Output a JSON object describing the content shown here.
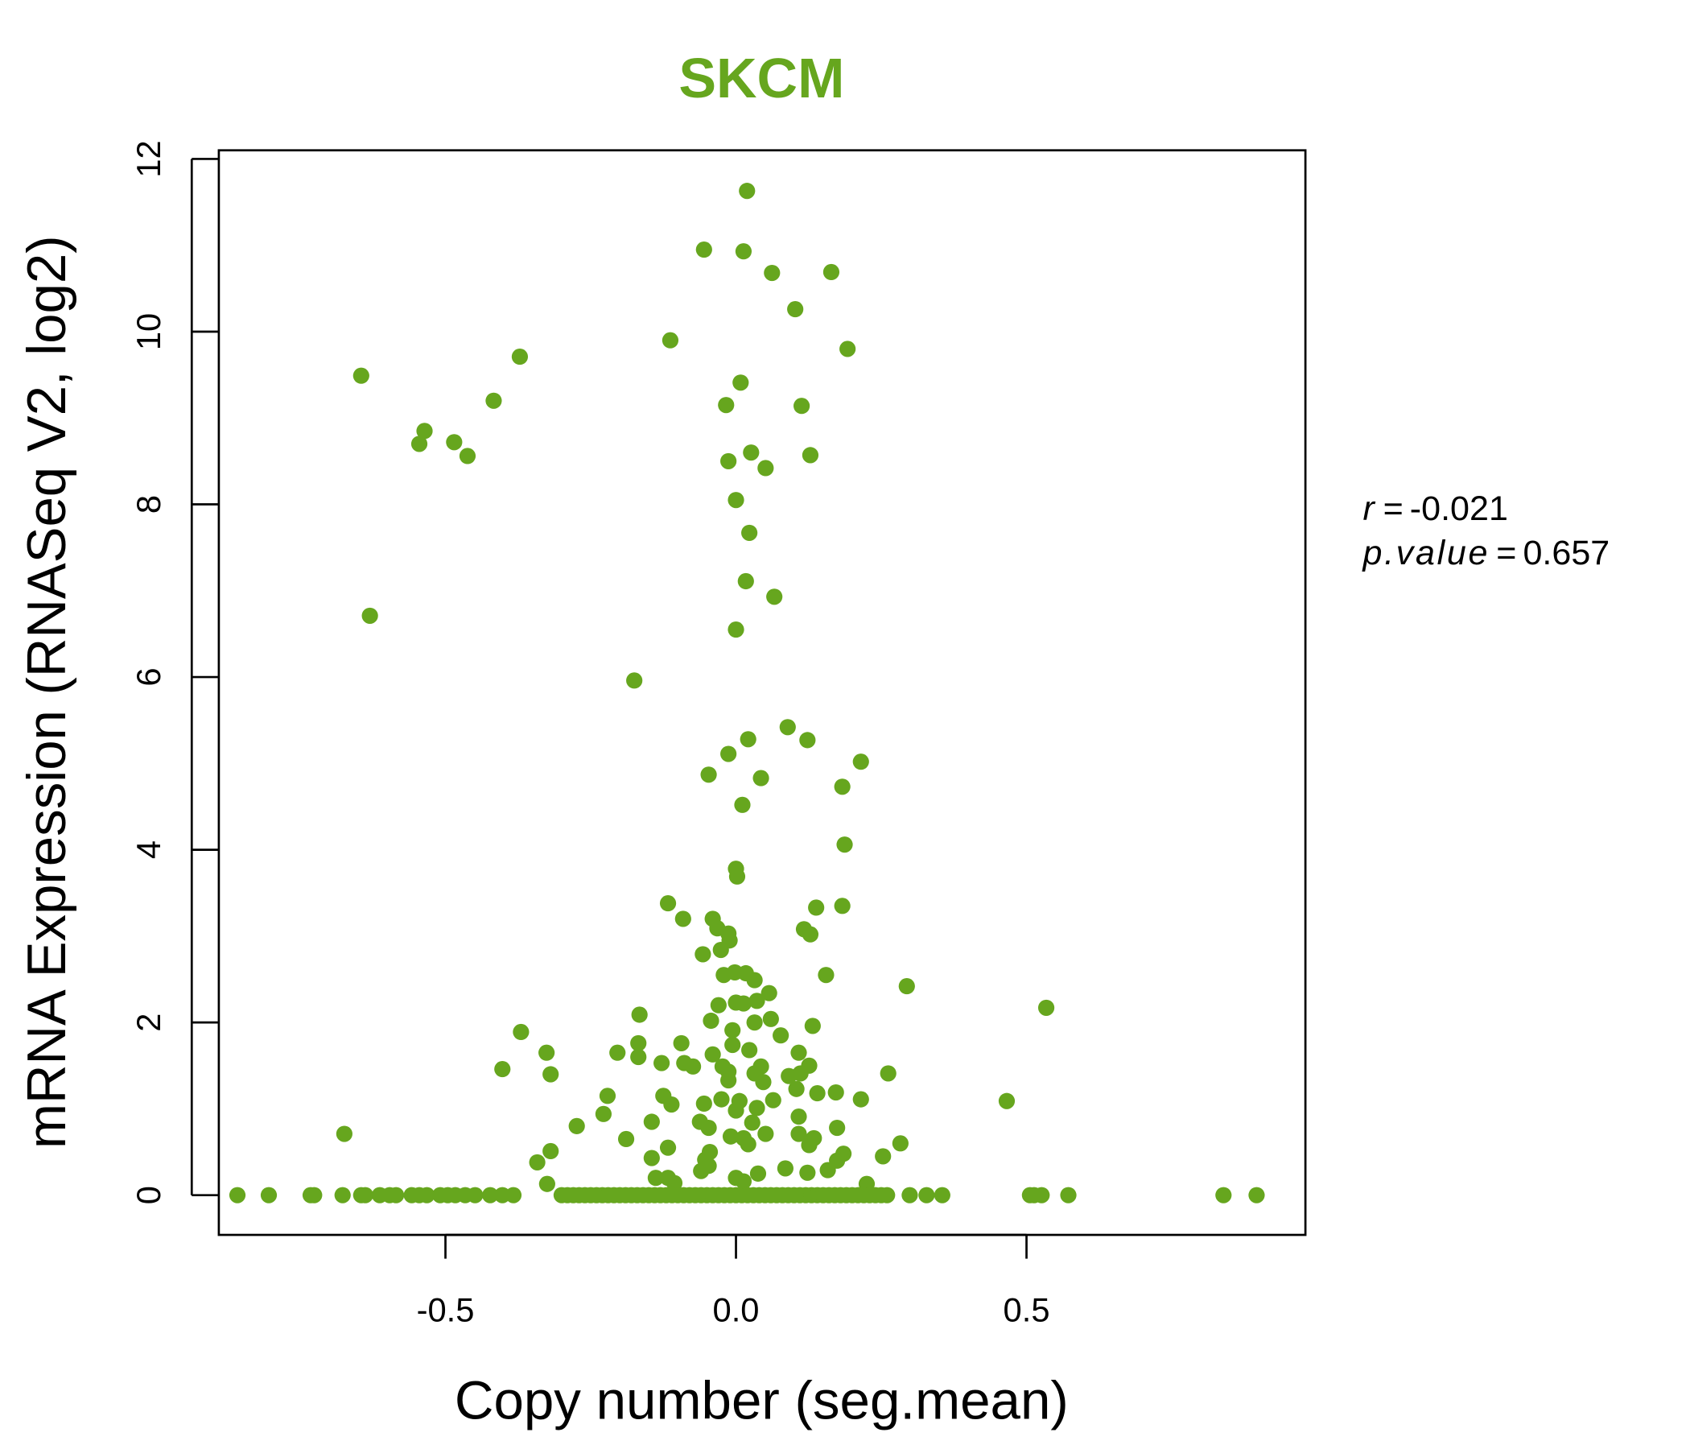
{
  "chart_data": {
    "type": "scatter",
    "title": "SKCM",
    "xlabel": "Copy number (seg.mean)",
    "ylabel": "mRNA Expression (RNASeq V2, log2)",
    "xlim": [
      -0.89,
      0.98
    ],
    "ylim": [
      -0.46,
      12.1
    ],
    "x_ticks": [
      -0.5,
      0.0,
      0.5
    ],
    "x_tick_labels": [
      "-0.5",
      "0.0",
      "0.5"
    ],
    "y_ticks": [
      0,
      2,
      4,
      6,
      8,
      10,
      12
    ],
    "y_tick_labels": [
      "0",
      "2",
      "4",
      "6",
      "8",
      "10",
      "12"
    ],
    "grid": false,
    "colors": {
      "points": "#66A61E",
      "title": "#66A61E"
    },
    "annotations": {
      "r_label": "r",
      "r_value": "-0.021",
      "p_label": "p.value",
      "p_value": "0.657",
      "eq": "="
    },
    "points": [
      [
        0.019,
        11.63
      ],
      [
        -0.055,
        10.95
      ],
      [
        0.013,
        10.93
      ],
      [
        0.062,
        10.68
      ],
      [
        0.164,
        10.69
      ],
      [
        0.102,
        10.26
      ],
      [
        -0.113,
        9.9
      ],
      [
        0.192,
        9.8
      ],
      [
        -0.372,
        9.71
      ],
      [
        -0.645,
        9.49
      ],
      [
        0.008,
        9.41
      ],
      [
        -0.417,
        9.2
      ],
      [
        -0.017,
        9.15
      ],
      [
        0.113,
        9.14
      ],
      [
        -0.536,
        8.85
      ],
      [
        -0.545,
        8.7
      ],
      [
        -0.485,
        8.72
      ],
      [
        -0.462,
        8.56
      ],
      [
        0.026,
        8.6
      ],
      [
        -0.013,
        8.5
      ],
      [
        0.128,
        8.57
      ],
      [
        0.051,
        8.42
      ],
      [
        0.0,
        8.05
      ],
      [
        0.023,
        7.67
      ],
      [
        0.017,
        7.11
      ],
      [
        0.066,
        6.93
      ],
      [
        0.0,
        6.55
      ],
      [
        -0.63,
        6.71
      ],
      [
        -0.175,
        5.96
      ],
      [
        0.089,
        5.42
      ],
      [
        0.021,
        5.28
      ],
      [
        0.123,
        5.27
      ],
      [
        -0.013,
        5.11
      ],
      [
        0.215,
        5.02
      ],
      [
        -0.047,
        4.87
      ],
      [
        0.043,
        4.83
      ],
      [
        0.183,
        4.73
      ],
      [
        0.011,
        4.52
      ],
      [
        0.187,
        4.06
      ],
      [
        0.0,
        3.78
      ],
      [
        0.002,
        3.69
      ],
      [
        -0.117,
        3.38
      ],
      [
        0.138,
        3.33
      ],
      [
        0.183,
        3.35
      ],
      [
        -0.091,
        3.2
      ],
      [
        -0.04,
        3.2
      ],
      [
        0.117,
        3.08
      ],
      [
        0.128,
        3.02
      ],
      [
        -0.032,
        3.09
      ],
      [
        -0.013,
        3.03
      ],
      [
        -0.011,
        2.95
      ],
      [
        -0.026,
        2.84
      ],
      [
        -0.057,
        2.79
      ],
      [
        0.155,
        2.55
      ],
      [
        -0.021,
        2.55
      ],
      [
        -0.002,
        2.58
      ],
      [
        0.017,
        2.57
      ],
      [
        0.032,
        2.49
      ],
      [
        0.294,
        2.42
      ],
      [
        0.057,
        2.34
      ],
      [
        0.036,
        2.25
      ],
      [
        0.0,
        2.23
      ],
      [
        0.013,
        2.22
      ],
      [
        -0.03,
        2.2
      ],
      [
        0.534,
        2.17
      ],
      [
        -0.166,
        2.09
      ],
      [
        0.06,
        2.04
      ],
      [
        0.032,
        2.0
      ],
      [
        -0.043,
        2.02
      ],
      [
        0.132,
        1.96
      ],
      [
        -0.006,
        1.91
      ],
      [
        -0.37,
        1.89
      ],
      [
        0.077,
        1.85
      ],
      [
        -0.168,
        1.76
      ],
      [
        -0.094,
        1.76
      ],
      [
        -0.006,
        1.74
      ],
      [
        -0.326,
        1.65
      ],
      [
        -0.204,
        1.65
      ],
      [
        0.108,
        1.65
      ],
      [
        -0.168,
        1.6
      ],
      [
        -0.04,
        1.63
      ],
      [
        0.023,
        1.68
      ],
      [
        -0.128,
        1.53
      ],
      [
        -0.089,
        1.53
      ],
      [
        -0.074,
        1.49
      ],
      [
        0.126,
        1.5
      ],
      [
        -0.023,
        1.49
      ],
      [
        0.043,
        1.49
      ],
      [
        -0.013,
        1.43
      ],
      [
        0.032,
        1.41
      ],
      [
        -0.402,
        1.46
      ],
      [
        -0.319,
        1.4
      ],
      [
        0.262,
        1.41
      ],
      [
        0.091,
        1.38
      ],
      [
        -0.013,
        1.33
      ],
      [
        0.111,
        1.41
      ],
      [
        0.047,
        1.31
      ],
      [
        -0.125,
        1.15
      ],
      [
        -0.221,
        1.15
      ],
      [
        0.172,
        1.19
      ],
      [
        0.104,
        1.23
      ],
      [
        0.14,
        1.18
      ],
      [
        0.466,
        1.09
      ],
      [
        0.215,
        1.11
      ],
      [
        -0.055,
        1.06
      ],
      [
        -0.111,
        1.05
      ],
      [
        0.064,
        1.1
      ],
      [
        0.006,
        1.09
      ],
      [
        -0.025,
        1.11
      ],
      [
        0.036,
        1.01
      ],
      [
        -0.228,
        0.94
      ],
      [
        0.108,
        0.91
      ],
      [
        0.0,
        0.98
      ],
      [
        -0.062,
        0.85
      ],
      [
        -0.145,
        0.85
      ],
      [
        0.028,
        0.84
      ],
      [
        -0.047,
        0.78
      ],
      [
        0.174,
        0.78
      ],
      [
        -0.274,
        0.8
      ],
      [
        -0.674,
        0.71
      ],
      [
        0.051,
        0.71
      ],
      [
        0.108,
        0.71
      ],
      [
        0.134,
        0.66
      ],
      [
        -0.189,
        0.65
      ],
      [
        -0.009,
        0.68
      ],
      [
        0.013,
        0.66
      ],
      [
        0.283,
        0.6
      ],
      [
        0.126,
        0.58
      ],
      [
        -0.117,
        0.55
      ],
      [
        0.021,
        0.59
      ],
      [
        -0.319,
        0.51
      ],
      [
        -0.045,
        0.5
      ],
      [
        0.185,
        0.48
      ],
      [
        0.253,
        0.45
      ],
      [
        0.174,
        0.4
      ],
      [
        -0.053,
        0.41
      ],
      [
        -0.342,
        0.38
      ],
      [
        -0.145,
        0.43
      ],
      [
        0.085,
        0.31
      ],
      [
        -0.06,
        0.28
      ],
      [
        0.158,
        0.29
      ],
      [
        -0.047,
        0.34
      ],
      [
        -0.138,
        0.2
      ],
      [
        -0.117,
        0.2
      ],
      [
        0.0,
        0.2
      ],
      [
        0.123,
        0.26
      ],
      [
        0.038,
        0.25
      ],
      [
        0.225,
        0.13
      ],
      [
        -0.325,
        0.13
      ],
      [
        -0.106,
        0.14
      ],
      [
        0.013,
        0.16
      ],
      [
        -0.858,
        0
      ],
      [
        -0.804,
        0
      ],
      [
        -0.732,
        0
      ],
      [
        -0.726,
        0
      ],
      [
        -0.677,
        0
      ],
      [
        -0.645,
        0
      ],
      [
        -0.638,
        0
      ],
      [
        -0.613,
        0
      ],
      [
        -0.596,
        0
      ],
      [
        -0.585,
        0
      ],
      [
        -0.558,
        0
      ],
      [
        -0.545,
        0
      ],
      [
        -0.532,
        0
      ],
      [
        -0.509,
        0
      ],
      [
        -0.496,
        0
      ],
      [
        -0.483,
        0
      ],
      [
        -0.466,
        0
      ],
      [
        -0.449,
        0
      ],
      [
        -0.423,
        0
      ],
      [
        -0.402,
        0
      ],
      [
        -0.383,
        0
      ],
      [
        -0.3,
        0
      ],
      [
        -0.29,
        0
      ],
      [
        -0.28,
        0
      ],
      [
        -0.27,
        0
      ],
      [
        -0.26,
        0
      ],
      [
        -0.25,
        0
      ],
      [
        -0.24,
        0
      ],
      [
        -0.23,
        0
      ],
      [
        -0.22,
        0
      ],
      [
        -0.21,
        0
      ],
      [
        -0.2,
        0
      ],
      [
        -0.19,
        0
      ],
      [
        -0.18,
        0
      ],
      [
        -0.17,
        0
      ],
      [
        -0.16,
        0
      ],
      [
        -0.15,
        0
      ],
      [
        -0.14,
        0
      ],
      [
        -0.13,
        0
      ],
      [
        -0.12,
        0
      ],
      [
        -0.11,
        0
      ],
      [
        -0.1,
        0
      ],
      [
        -0.09,
        0
      ],
      [
        -0.08,
        0
      ],
      [
        -0.07,
        0
      ],
      [
        -0.06,
        0
      ],
      [
        -0.05,
        0
      ],
      [
        -0.04,
        0
      ],
      [
        -0.03,
        0
      ],
      [
        -0.02,
        0
      ],
      [
        -0.01,
        0
      ],
      [
        0.0,
        0
      ],
      [
        0.01,
        0
      ],
      [
        0.02,
        0
      ],
      [
        0.03,
        0
      ],
      [
        0.04,
        0
      ],
      [
        0.05,
        0
      ],
      [
        0.06,
        0
      ],
      [
        0.07,
        0
      ],
      [
        0.08,
        0
      ],
      [
        0.09,
        0
      ],
      [
        0.1,
        0
      ],
      [
        0.11,
        0
      ],
      [
        0.12,
        0
      ],
      [
        0.13,
        0
      ],
      [
        0.14,
        0
      ],
      [
        0.15,
        0
      ],
      [
        0.16,
        0
      ],
      [
        0.17,
        0
      ],
      [
        0.18,
        0
      ],
      [
        0.19,
        0
      ],
      [
        0.2,
        0
      ],
      [
        0.21,
        0
      ],
      [
        0.22,
        0
      ],
      [
        0.23,
        0
      ],
      [
        0.24,
        0
      ],
      [
        0.25,
        0
      ],
      [
        0.26,
        0
      ],
      [
        0.299,
        0
      ],
      [
        0.328,
        0
      ],
      [
        0.355,
        0
      ],
      [
        0.506,
        0
      ],
      [
        0.513,
        0
      ],
      [
        0.526,
        0
      ],
      [
        0.572,
        0
      ],
      [
        0.839,
        0
      ],
      [
        0.896,
        0
      ]
    ]
  }
}
